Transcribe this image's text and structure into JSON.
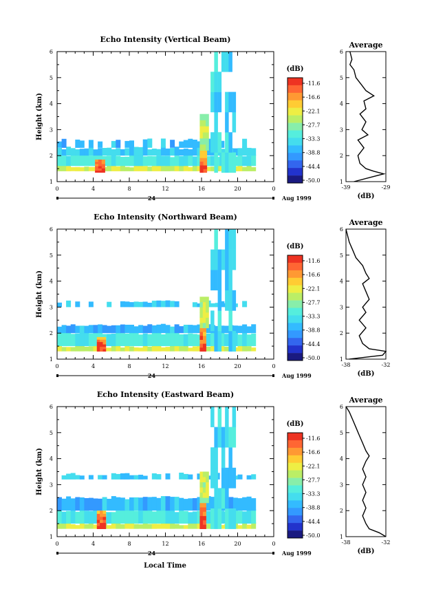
{
  "figure": {
    "bottom_xlabel": "Local Time",
    "date_label": "Aug 1999",
    "day_label": "24"
  },
  "colorbar": {
    "unit": "(dB)",
    "tick_labels": [
      "-11.6",
      "-16.6",
      "-22.1",
      "-27.7",
      "-33.3",
      "-38.8",
      "-44.4",
      "-50.0"
    ],
    "colors": [
      "#1a1a80",
      "#2233cc",
      "#3366ee",
      "#3399ff",
      "#33bbff",
      "#44ddee",
      "#55eedd",
      "#88eeaa",
      "#bbee66",
      "#eeee44",
      "#ffcc33",
      "#ff9933",
      "#ff6633",
      "#ee3322"
    ]
  },
  "chart_data": [
    {
      "type": "heatmap",
      "title": "Echo Intensity (Vertical Beam)",
      "ylabel": "Height (km)",
      "xlabel": "",
      "x_ticks": [
        "0",
        "4",
        "8",
        "12",
        "16",
        "20",
        "0"
      ],
      "y_ticks": [
        "1",
        "2",
        "3",
        "4",
        "5",
        "6"
      ],
      "xlim": [
        0,
        24
      ],
      "ylim": [
        1,
        6
      ],
      "colorbar_range_db": [
        -50.0,
        -11.6
      ],
      "layers": [
        {
          "t0": 0.0,
          "t1": 22.0,
          "h0": 1.4,
          "h1": 1.6,
          "db": -25
        },
        {
          "t0": 0.0,
          "t1": 22.0,
          "h0": 1.6,
          "h1": 2.0,
          "db": -33
        },
        {
          "t0": 0.0,
          "t1": 22.0,
          "h0": 2.0,
          "h1": 2.3,
          "db": -36
        },
        {
          "t0": 0.0,
          "t1": 22.0,
          "h0": 2.3,
          "h1": 2.6,
          "db": -38
        }
      ],
      "plumes": [
        {
          "t0": 4.2,
          "t1": 5.3,
          "h0": 1.35,
          "h1": 1.85,
          "db": -12
        },
        {
          "t0": 15.8,
          "t1": 16.6,
          "h0": 1.35,
          "h1": 2.2,
          "db": -12
        },
        {
          "t0": 15.8,
          "t1": 16.8,
          "h0": 2.2,
          "h1": 3.6,
          "db": -25
        },
        {
          "t0": 17.0,
          "t1": 19.8,
          "h0": 1.35,
          "h1": 6.0,
          "db": -33
        }
      ],
      "avg_title": "Average",
      "avg_xlabel": "(dB)",
      "avg_xticks": [
        "-39",
        "-29"
      ],
      "avg_xlim": [
        -39,
        -29
      ],
      "avg_profile": {
        "h": [
          1.0,
          1.2,
          1.3,
          1.4,
          1.5,
          1.7,
          2.0,
          2.3,
          2.6,
          2.8,
          3.0,
          3.3,
          3.6,
          3.8,
          4.1,
          4.3,
          4.5,
          4.7,
          5.0,
          5.3,
          5.5,
          5.7,
          6.0
        ],
        "db": [
          -37.0,
          -32.0,
          -29.5,
          -32.0,
          -34.0,
          -35.5,
          -36.0,
          -34.5,
          -36.0,
          -33.5,
          -35.0,
          -34.0,
          -35.5,
          -34.0,
          -34.5,
          -32.0,
          -34.0,
          -35.0,
          -36.5,
          -37.0,
          -38.0,
          -37.5,
          -38.0
        ]
      }
    },
    {
      "type": "heatmap",
      "title": "Echo Intensity (Northward Beam)",
      "ylabel": "Height (km)",
      "xlabel": "",
      "x_ticks": [
        "0",
        "4",
        "8",
        "12",
        "16",
        "20",
        "0"
      ],
      "y_ticks": [
        "1",
        "2",
        "3",
        "4",
        "5",
        "6"
      ],
      "xlim": [
        0,
        24
      ],
      "ylim": [
        1,
        6
      ],
      "colorbar_range_db": [
        -50.0,
        -11.6
      ],
      "layers": [
        {
          "t0": 0.0,
          "t1": 22.0,
          "h0": 1.3,
          "h1": 1.5,
          "db": -25
        },
        {
          "t0": 0.0,
          "t1": 22.0,
          "h0": 1.5,
          "h1": 2.0,
          "db": -33
        },
        {
          "t0": 0.0,
          "t1": 22.0,
          "h0": 2.0,
          "h1": 2.3,
          "db": -38
        },
        {
          "t0": 0.0,
          "t1": 22.0,
          "h0": 3.0,
          "h1": 3.2,
          "db": -36
        }
      ],
      "plumes": [
        {
          "t0": 4.4,
          "t1": 5.4,
          "h0": 1.3,
          "h1": 1.85,
          "db": -12
        },
        {
          "t0": 15.8,
          "t1": 16.5,
          "h0": 1.3,
          "h1": 2.2,
          "db": -12
        },
        {
          "t0": 15.8,
          "t1": 16.8,
          "h0": 2.2,
          "h1": 3.4,
          "db": -25
        },
        {
          "t0": 17.0,
          "t1": 19.8,
          "h0": 1.3,
          "h1": 6.0,
          "db": -33
        }
      ],
      "avg_title": "Average",
      "avg_xlabel": "(dB)",
      "avg_xticks": [
        "-38",
        "-32"
      ],
      "avg_xlim": [
        -38,
        -32
      ],
      "avg_profile": {
        "h": [
          1.0,
          1.15,
          1.3,
          1.4,
          1.6,
          1.9,
          2.2,
          2.5,
          2.8,
          3.0,
          3.3,
          3.6,
          3.9,
          4.1,
          4.3,
          4.6,
          4.9,
          5.2,
          5.5,
          5.8,
          6.0
        ],
        "db": [
          -37.5,
          -32.5,
          -32.0,
          -34.5,
          -35.5,
          -36.0,
          -35.0,
          -36.0,
          -35.0,
          -35.5,
          -34.5,
          -35.0,
          -35.5,
          -34.5,
          -35.0,
          -35.5,
          -36.5,
          -37.0,
          -37.5,
          -37.8,
          -38.0
        ]
      }
    },
    {
      "type": "heatmap",
      "title": "Echo Intensity (Eastward Beam)",
      "ylabel": "Height (km)",
      "xlabel": "Local Time",
      "x_ticks": [
        "0",
        "4",
        "8",
        "12",
        "16",
        "20",
        "0"
      ],
      "y_ticks": [
        "1",
        "2",
        "3",
        "4",
        "5",
        "6"
      ],
      "xlim": [
        0,
        24
      ],
      "ylim": [
        1,
        6
      ],
      "colorbar_range_db": [
        -50.0,
        -11.6
      ],
      "layers": [
        {
          "t0": 0.0,
          "t1": 22.0,
          "h0": 1.3,
          "h1": 1.5,
          "db": -25
        },
        {
          "t0": 0.0,
          "t1": 22.0,
          "h0": 1.5,
          "h1": 2.0,
          "db": -33
        },
        {
          "t0": 0.0,
          "t1": 22.0,
          "h0": 2.0,
          "h1": 2.5,
          "db": -38
        },
        {
          "t0": 0.0,
          "t1": 22.0,
          "h0": 3.2,
          "h1": 3.4,
          "db": -36
        }
      ],
      "plumes": [
        {
          "t0": 4.4,
          "t1": 5.4,
          "h0": 1.3,
          "h1": 2.0,
          "db": -12
        },
        {
          "t0": 15.8,
          "t1": 16.5,
          "h0": 1.3,
          "h1": 2.3,
          "db": -12
        },
        {
          "t0": 15.8,
          "t1": 16.8,
          "h0": 2.3,
          "h1": 3.5,
          "db": -25
        },
        {
          "t0": 17.0,
          "t1": 19.8,
          "h0": 1.3,
          "h1": 6.0,
          "db": -33
        }
      ],
      "avg_title": "Average",
      "avg_xlabel": "(dB)",
      "avg_xticks": [
        "-38",
        "-32"
      ],
      "avg_xlim": [
        -38,
        -32
      ],
      "avg_profile": {
        "h": [
          1.0,
          1.15,
          1.3,
          1.5,
          1.8,
          2.1,
          2.4,
          2.7,
          3.0,
          3.3,
          3.6,
          3.9,
          4.1,
          4.3,
          4.6,
          4.9,
          5.2,
          5.5,
          5.8,
          6.0
        ],
        "db": [
          -32.0,
          -33.0,
          -34.5,
          -35.0,
          -35.5,
          -35.0,
          -35.5,
          -35.0,
          -35.5,
          -35.0,
          -35.5,
          -35.0,
          -34.5,
          -35.0,
          -35.5,
          -36.0,
          -36.5,
          -37.0,
          -37.5,
          -38.0
        ]
      }
    }
  ]
}
